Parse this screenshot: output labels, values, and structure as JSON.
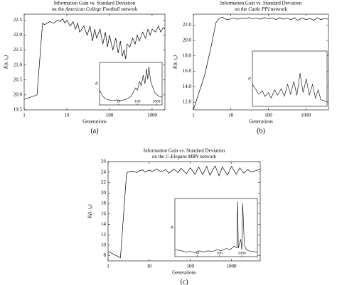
{
  "chart_data": [
    {
      "type": "line",
      "title": "Information Gain vs. Standard Deviation",
      "subtitle": [
        "on the",
        "American College Football",
        "network"
      ],
      "xlabel": "Generations",
      "ylabel": "K(t, t₀)",
      "caption": "(a)",
      "xscale": "log",
      "color": "#000000",
      "xlim": [
        1,
        2000
      ],
      "xticks": [
        1,
        10,
        100,
        1000
      ],
      "ylim": [
        19.5,
        22.7
      ],
      "yticks": [
        19.5,
        {
          "value": 20,
          "label": "20.0"
        },
        20.5,
        {
          "value": 21,
          "label": "21.0"
        },
        21.5,
        {
          "value": 22,
          "label": "22.0"
        },
        22.5
      ],
      "x": [
        1,
        2,
        2.7,
        3,
        4,
        5,
        6,
        7,
        8,
        9,
        10,
        12,
        14,
        16,
        18,
        20,
        25,
        30,
        35,
        40,
        45,
        50,
        60,
        70,
        80,
        90,
        100,
        120,
        140,
        160,
        180,
        200,
        220,
        240,
        260,
        300,
        350,
        400,
        450,
        500,
        600,
        700,
        800,
        900,
        1000,
        1200,
        1400,
        1600,
        1800,
        2000
      ],
      "values": [
        19.85,
        20.0,
        22.4,
        22.35,
        22.45,
        22.4,
        22.5,
        22.45,
        22.55,
        22.4,
        22.5,
        22.3,
        22.45,
        22.2,
        22.4,
        22.1,
        22.3,
        22.0,
        22.3,
        21.8,
        22.2,
        21.9,
        22.2,
        21.7,
        22.1,
        21.6,
        22.0,
        21.5,
        21.9,
        21.4,
        21.8,
        21.3,
        21.5,
        21.2,
        21.7,
        21.6,
        21.9,
        21.7,
        22.0,
        21.8,
        22.1,
        21.9,
        22.2,
        22.0,
        22.2,
        22.1,
        22.3,
        22.1,
        22.25,
        22.2
      ],
      "inset": {
        "ylabel": "σ",
        "xlim": [
          1,
          2000
        ],
        "xticks": [
          10,
          100,
          1000
        ],
        "ylim": [
          0,
          1
        ],
        "x": [
          1,
          1.5,
          2,
          3,
          5,
          8,
          12,
          20,
          30,
          45,
          60,
          80,
          100,
          130,
          160,
          200,
          250,
          300,
          350,
          400,
          500,
          600,
          800,
          1000,
          1400,
          2000
        ],
        "values": [
          0.35,
          0.2,
          0.15,
          0.12,
          0.1,
          0.12,
          0.1,
          0.12,
          0.15,
          0.2,
          0.3,
          0.4,
          0.35,
          0.55,
          0.45,
          0.7,
          0.5,
          0.85,
          0.6,
          0.9,
          0.55,
          0.45,
          0.3,
          0.25,
          0.2,
          0.18
        ]
      }
    },
    {
      "type": "line",
      "title": "Information Gain vs. Standard Deviation",
      "subtitle": [
        "on the",
        "Cattle PPI",
        "network"
      ],
      "xlabel": "Generations",
      "ylabel": "K(t, t₀)",
      "caption": "(b)",
      "xscale": "log",
      "color": "#000000",
      "xlim": [
        1,
        4000
      ],
      "xticks": [
        1,
        10,
        100,
        1000
      ],
      "ylim": [
        11,
        23.4
      ],
      "yticks": [
        {
          "value": 12,
          "label": "12.0"
        },
        {
          "value": 14,
          "label": "14.0"
        },
        {
          "value": 16,
          "label": "16.0"
        },
        {
          "value": 18,
          "label": "18.0"
        },
        {
          "value": 20,
          "label": "20.0"
        },
        {
          "value": 22,
          "label": "22.0"
        }
      ],
      "x": [
        1,
        2,
        3,
        4,
        5,
        6,
        7,
        8,
        10,
        12,
        15,
        20,
        25,
        30,
        40,
        50,
        60,
        80,
        100,
        130,
        160,
        200,
        250,
        300,
        400,
        500,
        600,
        800,
        1000,
        1300,
        1600,
        2000,
        2500,
        3000,
        4000
      ],
      "values": [
        11,
        15.5,
        19.3,
        22.3,
        22.9,
        23.0,
        22.8,
        22.7,
        22.8,
        22.9,
        22.75,
        22.9,
        22.8,
        22.95,
        22.8,
        22.9,
        22.75,
        22.95,
        22.8,
        22.9,
        22.7,
        22.95,
        22.75,
        22.9,
        22.7,
        22.95,
        22.6,
        22.9,
        22.7,
        22.85,
        22.6,
        22.9,
        22.7,
        22.8,
        22.75
      ],
      "inset": {
        "ylabel": "σ",
        "xlim": [
          1,
          4000
        ],
        "ylim": [
          0,
          1
        ],
        "x": [
          1,
          1.5,
          2,
          3,
          4,
          6,
          8,
          12,
          16,
          25,
          35,
          50,
          70,
          100,
          140,
          200,
          280,
          400,
          550,
          800,
          1100,
          1500,
          2000,
          3000,
          4000
        ],
        "values": [
          0.4,
          0.3,
          0.22,
          0.28,
          0.18,
          0.25,
          0.15,
          0.3,
          0.2,
          0.32,
          0.18,
          0.4,
          0.22,
          0.45,
          0.2,
          0.6,
          0.25,
          0.5,
          0.2,
          0.4,
          0.15,
          0.3,
          0.12,
          0.1,
          0.08
        ]
      }
    },
    {
      "type": "line",
      "title": "Information Gain vs. Standard Deviation",
      "subtitle": [
        "on the",
        "C-Elegans MRN",
        "network"
      ],
      "xlabel": "Generations",
      "ylabel": "K(t, t₀)",
      "caption": "(c)",
      "xscale": "log",
      "color": "#000000",
      "xlim": [
        1,
        5000
      ],
      "xticks": [
        1,
        10,
        100,
        1000
      ],
      "ylim": [
        7,
        26
      ],
      "yticks": [
        8,
        10,
        12,
        14,
        16,
        18,
        20,
        22,
        24,
        26
      ],
      "x": [
        1,
        2,
        2.8,
        3,
        4,
        5,
        6,
        7,
        8,
        10,
        12,
        15,
        20,
        25,
        30,
        40,
        50,
        60,
        80,
        100,
        130,
        160,
        200,
        250,
        300,
        400,
        500,
        600,
        800,
        1000,
        1300,
        1600,
        2000,
        2500,
        3000,
        4000,
        5000
      ],
      "values": [
        8.8,
        7.6,
        23.5,
        24.0,
        24.2,
        23.9,
        24.3,
        24.4,
        24.0,
        24.4,
        24.1,
        24.6,
        24.0,
        24.5,
        23.8,
        24.6,
        23.9,
        24.7,
        23.7,
        24.8,
        23.6,
        25.0,
        23.5,
        25.1,
        23.4,
        25.2,
        23.3,
        25.0,
        23.4,
        25.1,
        23.6,
        24.8,
        23.8,
        24.5,
        24.0,
        24.3,
        24.6
      ],
      "inset": {
        "ylabel": "σ",
        "xlim": [
          1,
          5000
        ],
        "xticks": [
          10,
          100,
          1000
        ],
        "ylim": [
          0,
          1
        ],
        "x": [
          1,
          2,
          3,
          5,
          8,
          12,
          20,
          30,
          50,
          80,
          120,
          200,
          300,
          450,
          600,
          650,
          700,
          900,
          1000,
          1100,
          1300,
          1600,
          2000,
          3000,
          5000
        ],
        "values": [
          0.12,
          0.1,
          0.08,
          0.09,
          0.07,
          0.1,
          0.08,
          0.1,
          0.09,
          0.12,
          0.1,
          0.14,
          0.12,
          0.18,
          0.15,
          0.95,
          0.15,
          0.3,
          0.12,
          0.92,
          0.2,
          0.12,
          0.1,
          0.09,
          0.08
        ]
      }
    }
  ]
}
